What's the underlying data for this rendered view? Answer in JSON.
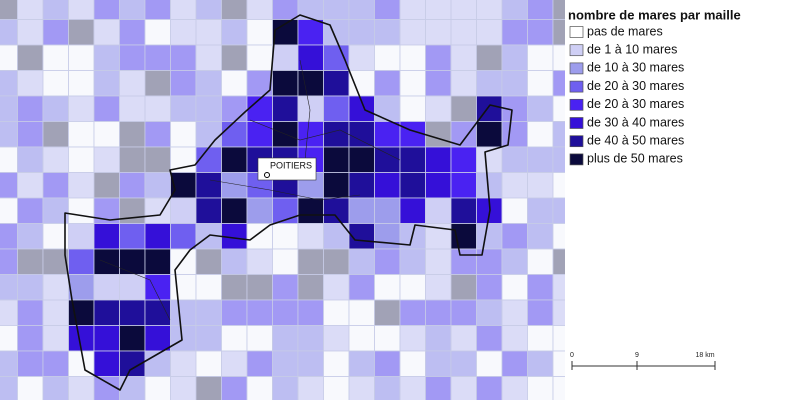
{
  "legend": {
    "title": "nombre de mares par maille",
    "items": [
      {
        "label": "pas de mares",
        "color": "#ffffff"
      },
      {
        "label": "de 1 à 10 mares",
        "color": "#cfcff5"
      },
      {
        "label": "de 10 à 30 mares",
        "color": "#9d9dec"
      },
      {
        "label": "de 20 à 30 mares",
        "color": "#6f5ff0"
      },
      {
        "label": "de 20 à 30 mares",
        "color": "#4a22f2"
      },
      {
        "label": "de 30 à 40 mares",
        "color": "#3510d8"
      },
      {
        "label": "de 40 à 50 mares",
        "color": "#1f0f9a"
      },
      {
        "label": "plus de 50 mares",
        "color": "#0b0a3c"
      }
    ]
  },
  "map": {
    "city_label": "POITIERS"
  },
  "scale": {
    "labels": [
      "0",
      "9",
      "18 km"
    ]
  }
}
